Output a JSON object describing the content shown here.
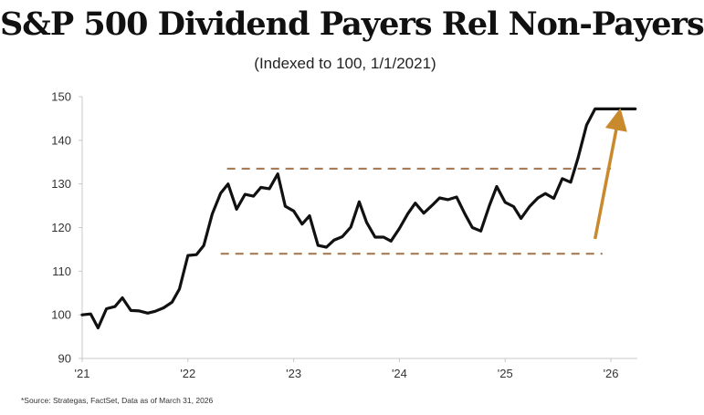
{
  "chart_data": {
    "type": "line",
    "title": "S&P 500 Dividend Payers Rel Non-Payers",
    "subtitle": "(Indexed to 100, 1/1/2021)",
    "source": "*Source: Strategas, FactSet, Data as of March 31, 2026",
    "ylim": [
      90,
      150
    ],
    "yticks": [
      90,
      100,
      110,
      120,
      130,
      140,
      150
    ],
    "xlim": [
      2021.0,
      2026.25
    ],
    "xtick_values": [
      2021,
      2022,
      2023,
      2024,
      2025,
      2026
    ],
    "xtick_labels": [
      "'21",
      "'22",
      "'23",
      "'24",
      "'25",
      "'26"
    ],
    "grid": false,
    "legend": "none",
    "series": [
      {
        "color": "#111111",
        "x": [
          2021.0,
          2021.08,
          2021.15,
          2021.23,
          2021.31,
          2021.38,
          2021.46,
          2021.54,
          2021.62,
          2021.69,
          2021.77,
          2021.85,
          2021.92,
          2022.0,
          2022.08,
          2022.15,
          2022.23,
          2022.31,
          2022.38,
          2022.46,
          2022.54,
          2022.62,
          2022.69,
          2022.77,
          2022.85,
          2022.92,
          2023.0,
          2023.08,
          2023.15,
          2023.23,
          2023.31,
          2023.38,
          2023.46,
          2023.54,
          2023.62,
          2023.69,
          2023.77,
          2023.85,
          2023.92,
          2024.0,
          2024.08,
          2024.15,
          2024.23,
          2024.31,
          2024.38,
          2024.46,
          2024.54,
          2024.62,
          2024.69,
          2024.77,
          2024.85,
          2024.92,
          2025.0,
          2025.08,
          2025.15,
          2025.23,
          2025.31,
          2025.38,
          2025.46,
          2025.54,
          2025.62,
          2025.69,
          2025.77,
          2025.85,
          2025.92,
          2026.0,
          2026.08,
          2026.15,
          2026.23
        ],
        "y": [
          100,
          100.2,
          97,
          101.4,
          101.9,
          103.9,
          101,
          100.9,
          100.4,
          100.8,
          101.6,
          102.9,
          105.9,
          113.6,
          113.8,
          115.9,
          123.1,
          127.9,
          130,
          124.2,
          127.6,
          127.2,
          129.2,
          128.9,
          132.3,
          124.9,
          123.8,
          120.8,
          122.7,
          115.9,
          115.5,
          117.1,
          117.9,
          120.1,
          125.9,
          121.2,
          117.8,
          117.8,
          116.9,
          119.8,
          123.2,
          125.6,
          123.3,
          125.1,
          126.8,
          126.4,
          127,
          123.1,
          120,
          119.2,
          125,
          129.4,
          125.8,
          124.8,
          122.1,
          124.8,
          126.8,
          127.8,
          126.7,
          131.2,
          130.4,
          136,
          143.5,
          147.2,
          147.2,
          147.2,
          147.2,
          147.2,
          147.2
        ]
      }
    ],
    "annotations": [
      {
        "type": "dashed-line",
        "color": "#a77b55",
        "y": 133.5,
        "x": [
          2022.37,
          2026.0
        ]
      },
      {
        "type": "dashed-line",
        "color": "#a77b55",
        "y": 114,
        "x": [
          2022.31,
          2025.92
        ]
      },
      {
        "type": "arrow",
        "color": "#c98a2e",
        "from": [
          2025.85,
          117.4
        ],
        "to": [
          2026.07,
          144.9
        ]
      }
    ]
  }
}
